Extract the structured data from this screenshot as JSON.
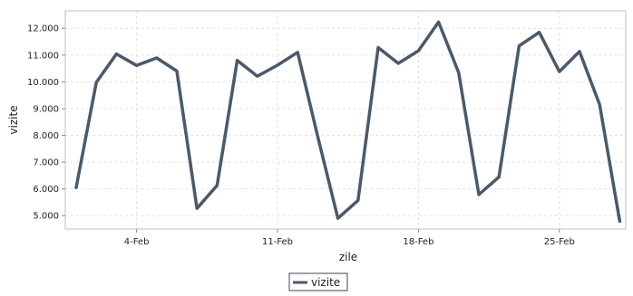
{
  "chart_data": {
    "type": "line",
    "title": "",
    "xlabel": "zile",
    "ylabel": "vizite",
    "x": [
      "1-Feb",
      "2-Feb",
      "3-Feb",
      "4-Feb",
      "5-Feb",
      "6-Feb",
      "7-Feb",
      "8-Feb",
      "9-Feb",
      "10-Feb",
      "11-Feb",
      "12-Feb",
      "13-Feb",
      "14-Feb",
      "15-Feb",
      "16-Feb",
      "17-Feb",
      "18-Feb",
      "19-Feb",
      "20-Feb",
      "21-Feb",
      "22-Feb",
      "23-Feb",
      "24-Feb",
      "25-Feb",
      "26-Feb",
      "27-Feb",
      "28-Feb"
    ],
    "x_tick_labels": [
      "4-Feb",
      "11-Feb",
      "18-Feb",
      "25-Feb"
    ],
    "y_tick_labels": [
      "5.000",
      "6.000",
      "7.000",
      "8.000",
      "9.000",
      "10.000",
      "11.000",
      "12.000"
    ],
    "y_ticks": [
      5000,
      6000,
      7000,
      8000,
      9000,
      10000,
      11000,
      12000
    ],
    "ylim": [
      4500,
      12650
    ],
    "grid": true,
    "legend_position": "bottom-center",
    "series": [
      {
        "name": "vizite",
        "color": "#4a5a6b",
        "values": [
          6050,
          9980,
          11040,
          10610,
          10890,
          10400,
          5270,
          6130,
          10800,
          10210,
          10620,
          11100,
          7950,
          4900,
          5570,
          11280,
          10690,
          11160,
          12230,
          10340,
          5790,
          6440,
          11340,
          11850,
          10380,
          11130,
          9150,
          4790
        ]
      }
    ]
  }
}
